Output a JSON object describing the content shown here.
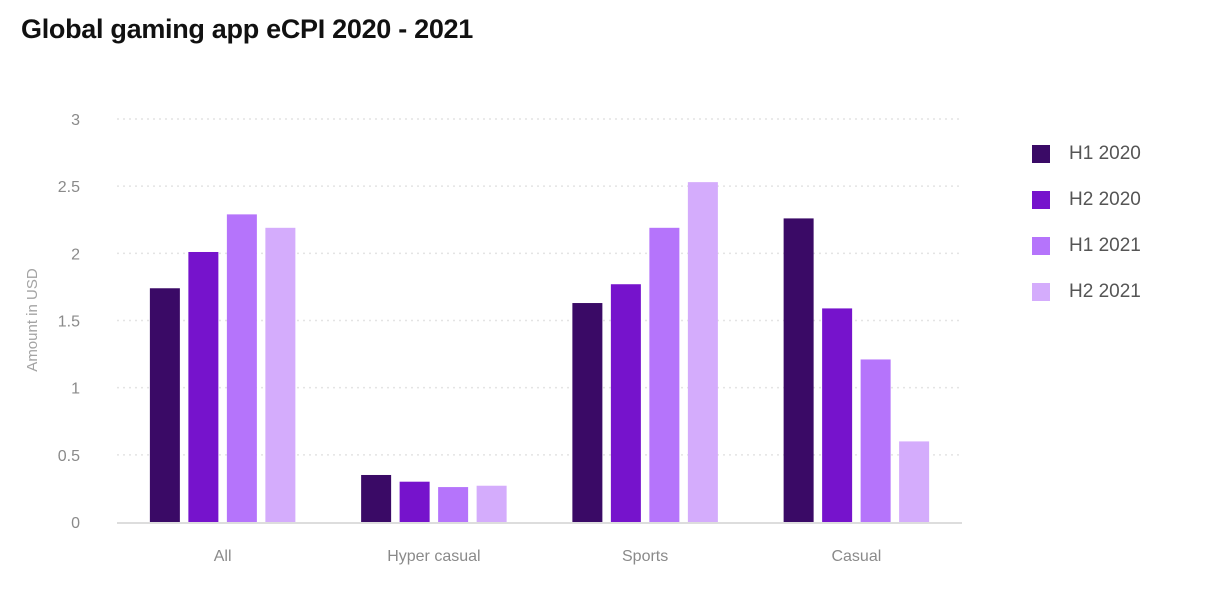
{
  "chart_data": {
    "type": "bar",
    "title": "Global gaming app eCPI 2020 - 2021",
    "xlabel": "",
    "ylabel": "Amount in USD",
    "ylim": [
      0,
      3
    ],
    "yticks": [
      0,
      0.5,
      1,
      1.5,
      2,
      2.5,
      3
    ],
    "ytick_labels": [
      "0",
      "0.5",
      "1",
      "1.5",
      "2",
      "2.5",
      "3"
    ],
    "grid": "horizontal-dotted",
    "legend_position": "right",
    "categories": [
      "All",
      "Hyper casual",
      "Sports",
      "Casual"
    ],
    "series": [
      {
        "name": "H1 2020",
        "color": "#3a0a66",
        "values": [
          1.74,
          0.35,
          1.63,
          2.26
        ]
      },
      {
        "name": "H2 2020",
        "color": "#7613cc",
        "values": [
          2.01,
          0.3,
          1.77,
          1.59
        ]
      },
      {
        "name": "H1 2021",
        "color": "#b574fb",
        "values": [
          2.29,
          0.26,
          2.19,
          1.21
        ]
      },
      {
        "name": "H2 2021",
        "color": "#d4acfc",
        "values": [
          2.19,
          0.27,
          2.53,
          0.6
        ]
      }
    ]
  }
}
